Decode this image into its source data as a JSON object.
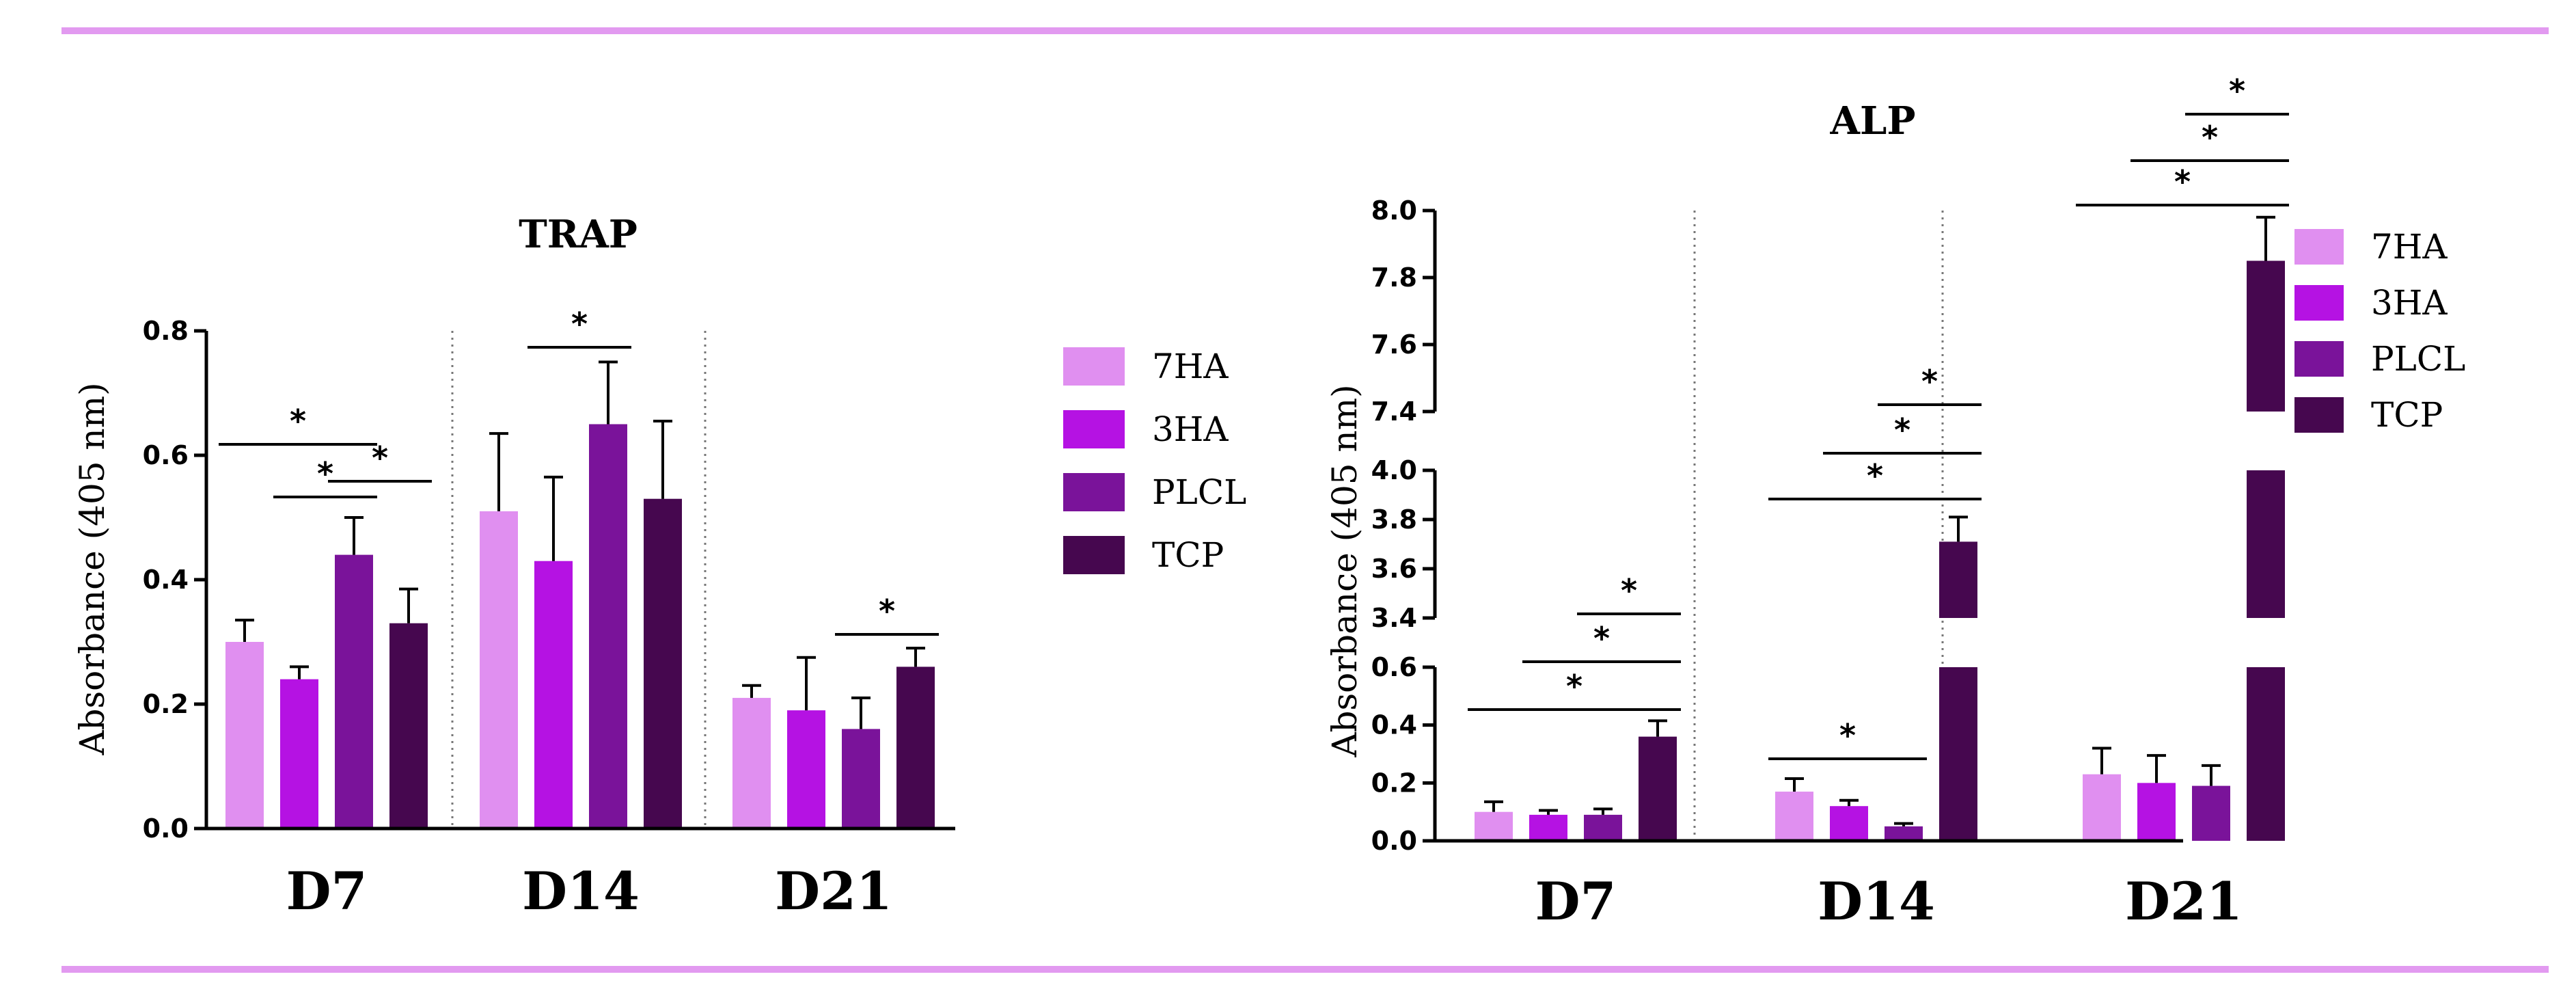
{
  "colors": {
    "frame": "#e29af0",
    "series": [
      "#e08ff0",
      "#b512e3",
      "#7a139a",
      "#46074f"
    ],
    "divider": "#777777"
  },
  "chart_data": [
    {
      "type": "bar",
      "title": "TRAP",
      "xlabel": "",
      "ylabel": "Absorbance (405 nm)",
      "categories": [
        "D7",
        "D14",
        "D21"
      ],
      "ylim": [
        0,
        0.8
      ],
      "yticks": [
        "0.0",
        "0.2",
        "0.4",
        "0.6",
        "0.8"
      ],
      "series": [
        {
          "name": "7HA",
          "values": [
            0.3,
            0.51,
            0.21
          ],
          "errors": [
            0.035,
            0.125,
            0.02
          ]
        },
        {
          "name": "3HA",
          "values": [
            0.24,
            0.43,
            0.19
          ],
          "errors": [
            0.02,
            0.135,
            0.085
          ]
        },
        {
          "name": "PLCL",
          "values": [
            0.44,
            0.65,
            0.16
          ],
          "errors": [
            0.06,
            0.1,
            0.05
          ]
        },
        {
          "name": "TCP",
          "values": [
            0.33,
            0.53,
            0.26
          ],
          "errors": [
            0.055,
            0.125,
            0.03
          ]
        }
      ],
      "significance": [
        {
          "category": "D7",
          "from": "7HA",
          "to": "PLCL",
          "label": "*"
        },
        {
          "category": "D7",
          "from": "3HA",
          "to": "PLCL",
          "label": "*"
        },
        {
          "category": "D7",
          "from": "PLCL",
          "to": "TCP",
          "label": "*"
        },
        {
          "category": "D14",
          "from": "3HA",
          "to": "PLCL",
          "label": "*"
        },
        {
          "category": "D21",
          "from": "PLCL",
          "to": "TCP",
          "label": "*"
        }
      ],
      "legend": [
        "7HA",
        "3HA",
        "PLCL",
        "TCP"
      ],
      "legend_position": "right"
    },
    {
      "type": "bar",
      "title": "ALP",
      "xlabel": "",
      "ylabel": "Absorbance (405 nm)",
      "categories": [
        "D7",
        "D14",
        "D21"
      ],
      "axis_breaks": true,
      "ylim_segments": [
        [
          0,
          0.6
        ],
        [
          3.4,
          4.0
        ],
        [
          7.4,
          8.0
        ]
      ],
      "yticks": [
        "0.0",
        "0.2",
        "0.4",
        "0.6",
        "3.4",
        "3.6",
        "3.8",
        "4.0",
        "7.4",
        "7.6",
        "7.8",
        "8.0"
      ],
      "series": [
        {
          "name": "7HA",
          "values": [
            0.1,
            0.17,
            0.23
          ],
          "errors": [
            0.035,
            0.045,
            0.09
          ]
        },
        {
          "name": "3HA",
          "values": [
            0.09,
            0.12,
            0.2
          ],
          "errors": [
            0.015,
            0.02,
            0.095
          ]
        },
        {
          "name": "PLCL",
          "values": [
            0.09,
            0.05,
            0.19
          ],
          "errors": [
            0.02,
            0.01,
            0.07
          ]
        },
        {
          "name": "TCP",
          "values": [
            0.36,
            3.71,
            7.85
          ],
          "errors": [
            0.055,
            0.1,
            0.13
          ]
        }
      ],
      "significance": [
        {
          "category": "D7",
          "from": "7HA",
          "to": "TCP",
          "label": "*"
        },
        {
          "category": "D7",
          "from": "3HA",
          "to": "TCP",
          "label": "*"
        },
        {
          "category": "D7",
          "from": "PLCL",
          "to": "TCP",
          "label": "*"
        },
        {
          "category": "D14",
          "from": "7HA",
          "to": "PLCL",
          "label": "*"
        },
        {
          "category": "D14",
          "from": "7HA",
          "to": "TCP",
          "label": "*"
        },
        {
          "category": "D14",
          "from": "3HA",
          "to": "TCP",
          "label": "*"
        },
        {
          "category": "D14",
          "from": "PLCL",
          "to": "TCP",
          "label": "*"
        },
        {
          "category": "D21",
          "from": "7HA",
          "to": "TCP",
          "label": "*"
        },
        {
          "category": "D21",
          "from": "3HA",
          "to": "TCP",
          "label": "*"
        },
        {
          "category": "D21",
          "from": "PLCL",
          "to": "TCP",
          "label": "*"
        }
      ],
      "legend": [
        "7HA",
        "3HA",
        "PLCL",
        "TCP"
      ],
      "legend_position": "right"
    }
  ]
}
